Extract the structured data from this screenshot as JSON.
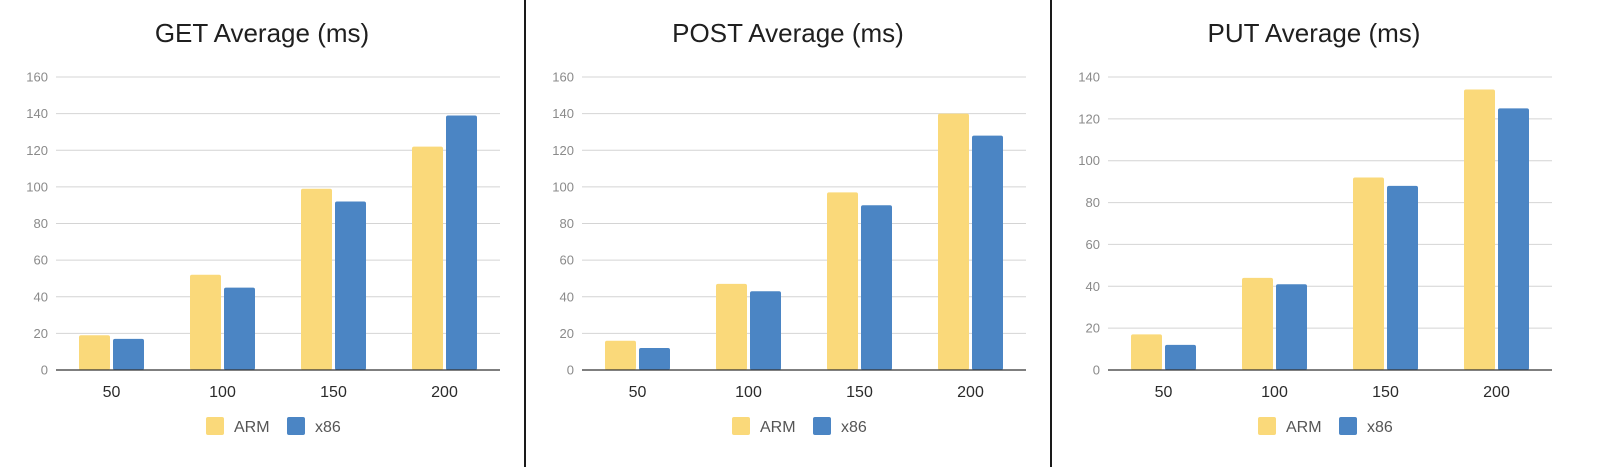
{
  "chart_data": [
    {
      "type": "bar",
      "title": "GET Average (ms)",
      "categories": [
        "50",
        "100",
        "150",
        "200"
      ],
      "series": [
        {
          "name": "ARM",
          "values": [
            19,
            52,
            99,
            122
          ],
          "color": "#fad97a"
        },
        {
          "name": "x86",
          "values": [
            17,
            45,
            92,
            139
          ],
          "color": "#4b85c4"
        }
      ],
      "ylim": [
        0,
        160
      ],
      "yticks": [
        0,
        20,
        40,
        60,
        80,
        100,
        120,
        140,
        160
      ],
      "xlabel": "",
      "ylabel": "",
      "grid": true,
      "legend_position": "bottom"
    },
    {
      "type": "bar",
      "title": "POST Average (ms)",
      "categories": [
        "50",
        "100",
        "150",
        "200"
      ],
      "series": [
        {
          "name": "ARM",
          "values": [
            16,
            47,
            97,
            140
          ],
          "color": "#fad97a"
        },
        {
          "name": "x86",
          "values": [
            12,
            43,
            90,
            128
          ],
          "color": "#4b85c4"
        }
      ],
      "ylim": [
        0,
        160
      ],
      "yticks": [
        0,
        20,
        40,
        60,
        80,
        100,
        120,
        140,
        160
      ],
      "xlabel": "",
      "ylabel": "",
      "grid": true,
      "legend_position": "bottom"
    },
    {
      "type": "bar",
      "title": "PUT Average (ms)",
      "categories": [
        "50",
        "100",
        "150",
        "200"
      ],
      "series": [
        {
          "name": "ARM",
          "values": [
            17,
            44,
            92,
            134
          ],
          "color": "#fad97a"
        },
        {
          "name": "x86",
          "values": [
            12,
            41,
            88,
            125
          ],
          "color": "#4b85c4"
        }
      ],
      "ylim": [
        0,
        140
      ],
      "yticks": [
        0,
        20,
        40,
        60,
        80,
        100,
        120,
        140
      ],
      "xlabel": "",
      "ylabel": "",
      "grid": true,
      "legend_position": "bottom"
    }
  ]
}
